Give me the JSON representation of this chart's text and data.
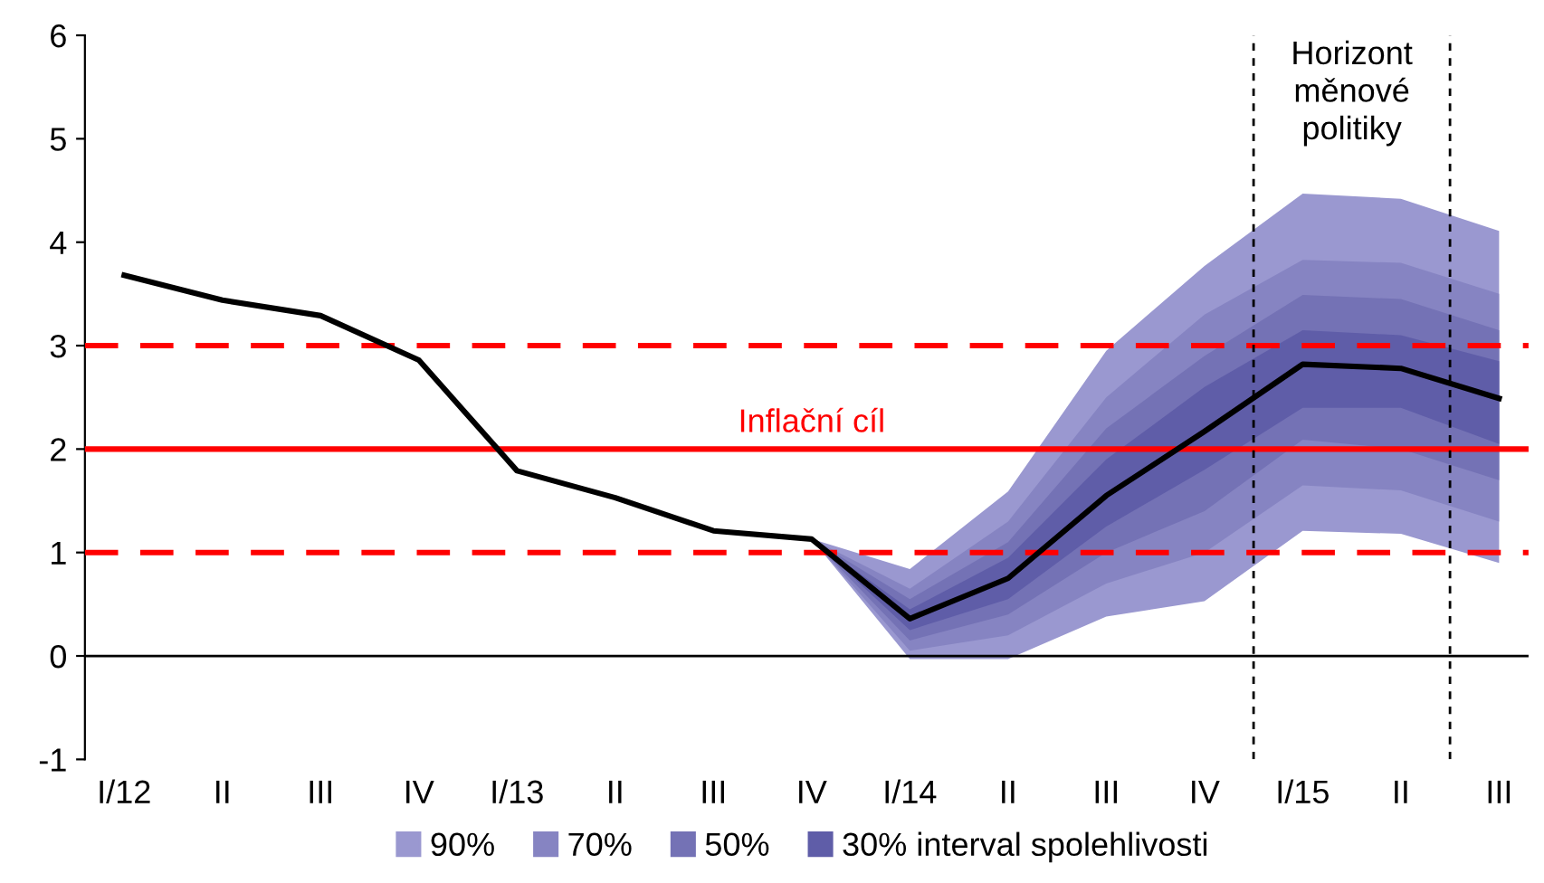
{
  "chart_data": {
    "type": "line",
    "categories": [
      "I/12",
      "II",
      "III",
      "IV",
      "I/13",
      "II",
      "III",
      "IV",
      "I/14",
      "II",
      "III",
      "IV",
      "I/15",
      "II",
      "III"
    ],
    "series": [
      {
        "name": "90%",
        "color": "#9a98d0",
        "values": [
          null,
          null,
          null,
          null,
          null,
          null,
          null,
          null,
          null,
          null,
          null,
          null,
          null,
          null,
          null
        ],
        "lower": [
          null,
          null,
          null,
          null,
          null,
          null,
          null,
          1.13,
          -0.03,
          -0.03,
          0.38,
          0.53,
          1.21,
          1.18,
          0.9
        ],
        "upper": [
          null,
          null,
          null,
          null,
          null,
          null,
          null,
          1.13,
          0.84,
          1.59,
          2.95,
          3.77,
          4.47,
          4.42,
          4.11
        ]
      },
      {
        "name": "70%",
        "color": "#8684c2",
        "values": [
          null,
          null,
          null,
          null,
          null,
          null,
          null,
          null,
          null,
          null,
          null,
          null,
          null,
          null,
          null
        ],
        "lower": [
          null,
          null,
          null,
          null,
          null,
          null,
          null,
          1.13,
          0.05,
          0.2,
          0.7,
          1.0,
          1.65,
          1.6,
          1.3
        ],
        "upper": [
          null,
          null,
          null,
          null,
          null,
          null,
          null,
          1.13,
          0.65,
          1.3,
          2.5,
          3.3,
          3.83,
          3.8,
          3.5
        ]
      },
      {
        "name": "50%",
        "color": "#7472b5",
        "values": [
          null,
          null,
          null,
          null,
          null,
          null,
          null,
          null,
          null,
          null,
          null,
          null,
          null,
          null,
          null
        ],
        "lower": [
          null,
          null,
          null,
          null,
          null,
          null,
          null,
          1.13,
          0.15,
          0.4,
          1.0,
          1.4,
          2.09,
          2.0,
          1.7
        ],
        "upper": [
          null,
          null,
          null,
          null,
          null,
          null,
          null,
          1.13,
          0.55,
          1.1,
          2.2,
          2.9,
          3.49,
          3.45,
          3.15
        ]
      },
      {
        "name": "30% interval spolehlivosti",
        "color": "#5f5da8",
        "values": [
          null,
          null,
          null,
          null,
          null,
          null,
          null,
          null,
          null,
          null,
          null,
          null,
          null,
          null,
          null
        ],
        "lower": [
          null,
          null,
          null,
          null,
          null,
          null,
          null,
          1.13,
          0.25,
          0.55,
          1.25,
          1.8,
          2.4,
          2.4,
          2.05
        ],
        "upper": [
          null,
          null,
          null,
          null,
          null,
          null,
          null,
          1.13,
          0.45,
          0.95,
          1.9,
          2.6,
          3.15,
          3.1,
          2.85
        ]
      },
      {
        "color": "#000000",
        "values": [
          3.68,
          3.44,
          3.29,
          2.86,
          1.79,
          1.53,
          1.21,
          1.13,
          0.36,
          0.75,
          1.55,
          2.17,
          2.82,
          2.78,
          2.49
        ]
      }
    ],
    "ylim": [
      -1,
      6
    ],
    "yticks": [
      -1,
      0,
      1,
      2,
      3,
      4,
      5,
      6
    ],
    "ref_lines": [
      {
        "axis": "y",
        "value": 2,
        "label": "Inflační cíl",
        "color": "#ff0000",
        "line_style": "solid"
      },
      {
        "axis": "y",
        "value": 1,
        "color": "#ff0000",
        "line_style": "dashed"
      },
      {
        "axis": "y",
        "value": 3,
        "color": "#ff0000",
        "line_style": "dashed"
      }
    ],
    "annotations": [
      "Horizont\nměnové\npolitiky"
    ],
    "legend": "bottom",
    "grid": false,
    "marker": "none",
    "line_style": "solid"
  }
}
